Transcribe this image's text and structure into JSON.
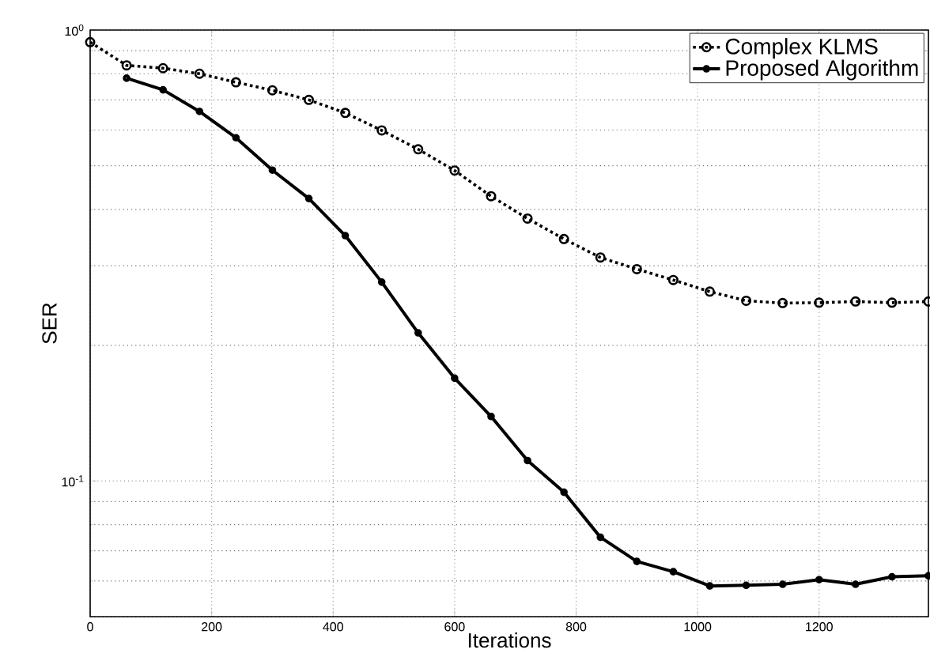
{
  "chart_data": {
    "type": "line",
    "xlabel": "Iterations",
    "ylabel": "SER",
    "xlim": [
      0,
      1380
    ],
    "xticks": [
      0,
      200,
      400,
      600,
      800,
      1000,
      1200
    ],
    "ylim": [
      0.05,
      1
    ],
    "yticks": [
      {
        "value": 0.1,
        "label": "10$^{-1}$"
      },
      {
        "value": 1,
        "label": "10$^{0}$"
      }
    ],
    "log": "y",
    "grid": true,
    "legend": "top right",
    "series": [
      {
        "name": "Complex KLMS",
        "color": "#000000",
        "marker": "circle",
        "line_style": "dotted",
        "x": [
          0,
          60,
          120,
          180,
          240,
          300,
          360,
          420,
          480,
          540,
          600,
          660,
          720,
          780,
          840,
          900,
          960,
          1020,
          1080,
          1140,
          1200,
          1260,
          1320,
          1380
        ],
        "values": [
          0.94,
          0.835,
          0.823,
          0.8,
          0.766,
          0.735,
          0.7,
          0.655,
          0.599,
          0.544,
          0.488,
          0.428,
          0.382,
          0.344,
          0.313,
          0.295,
          0.279,
          0.263,
          0.251,
          0.248,
          0.2485,
          0.25,
          0.2485,
          0.25
        ]
      },
      {
        "name": "Proposed Algorithm",
        "color": "#000000",
        "marker": "circle",
        "line_style": "solid",
        "x": [
          60,
          120,
          180,
          240,
          300,
          360,
          420,
          480,
          540,
          600,
          660,
          720,
          780,
          840,
          900,
          960,
          1020,
          1080,
          1140,
          1200,
          1260,
          1320,
          1380
        ],
        "values": [
          0.782,
          0.737,
          0.66,
          0.577,
          0.489,
          0.423,
          0.35,
          0.276,
          0.213,
          0.169,
          0.139,
          0.111,
          0.0944,
          0.075,
          0.0663,
          0.0629,
          0.0585,
          0.0587,
          0.059,
          0.0604,
          0.059,
          0.0613,
          0.0616
        ]
      }
    ]
  }
}
